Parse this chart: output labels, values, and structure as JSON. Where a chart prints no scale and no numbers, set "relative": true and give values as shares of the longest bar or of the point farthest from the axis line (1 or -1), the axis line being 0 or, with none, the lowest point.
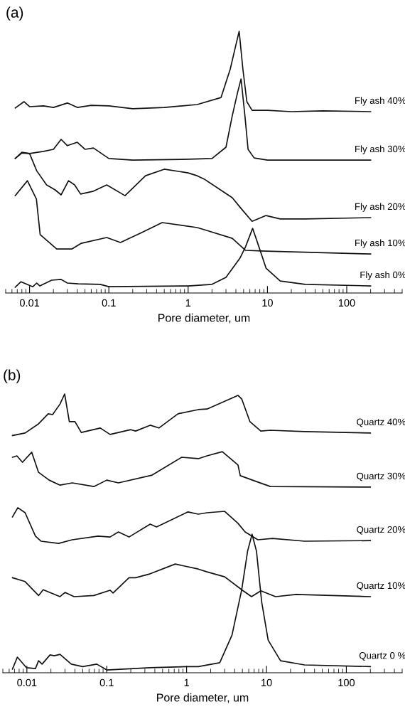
{
  "chart_data": [
    {
      "type": "line",
      "title": "(a)",
      "xlabel": "Pore diameter, um",
      "log": "x",
      "relative": true,
      "xlim": [
        0.005,
        500
      ],
      "xticks": [
        0.01,
        0.1,
        1,
        10,
        100
      ],
      "series": [
        {
          "name": "Fly ash 40%",
          "color": "#111111",
          "x": [
            0.0066,
            0.0085,
            0.01,
            0.015,
            0.02,
            0.03,
            0.04,
            0.06,
            0.1,
            0.2,
            0.5,
            1.3,
            2.6,
            3.4,
            4.0,
            4.4,
            4.9,
            5.5,
            6.4,
            10,
            20,
            50,
            200
          ],
          "values": [
            0.707,
            0.731,
            0.712,
            0.715,
            0.709,
            0.726,
            0.709,
            0.717,
            0.715,
            0.704,
            0.709,
            0.72,
            0.747,
            0.856,
            0.948,
            1.0,
            0.856,
            0.731,
            0.698,
            0.698,
            0.693,
            0.696,
            0.693
          ]
        },
        {
          "name": "Fly ash 30%",
          "color": "#111111",
          "x": [
            0.0066,
            0.008,
            0.01,
            0.015,
            0.02,
            0.025,
            0.03,
            0.04,
            0.05,
            0.064,
            0.1,
            0.2,
            1,
            2.0,
            3.0,
            3.6,
            4.2,
            4.65,
            5.2,
            5.7,
            6.8,
            10,
            30,
            200
          ],
          "values": [
            0.514,
            0.535,
            0.533,
            0.541,
            0.549,
            0.587,
            0.563,
            0.576,
            0.549,
            0.554,
            0.514,
            0.508,
            0.511,
            0.514,
            0.557,
            0.677,
            0.766,
            0.818,
            0.677,
            0.549,
            0.516,
            0.508,
            0.508,
            0.508
          ]
        },
        {
          "name": "Fly ash 20%",
          "color": "#111111",
          "x": [
            0.0066,
            0.008,
            0.01,
            0.0123,
            0.0164,
            0.021,
            0.025,
            0.031,
            0.037,
            0.044,
            0.064,
            0.094,
            0.16,
            0.29,
            0.5,
            1,
            1.3,
            1.6,
            3.6,
            4.65,
            6.4,
            9.6,
            14.5,
            30,
            200
          ],
          "values": [
            0.514,
            0.538,
            0.533,
            0.467,
            0.413,
            0.394,
            0.375,
            0.429,
            0.413,
            0.378,
            0.389,
            0.413,
            0.372,
            0.448,
            0.473,
            0.459,
            0.448,
            0.435,
            0.364,
            0.323,
            0.274,
            0.296,
            0.283,
            0.283,
            0.288
          ]
        },
        {
          "name": "Fly ash 10%",
          "color": "#111111",
          "x": [
            0.0066,
            0.0094,
            0.0122,
            0.0136,
            0.022,
            0.034,
            0.045,
            0.094,
            0.14,
            0.26,
            0.47,
            1.3,
            1.6,
            3.6,
            5.3,
            9.6,
            200
          ],
          "values": [
            0.372,
            0.429,
            0.359,
            0.223,
            0.168,
            0.168,
            0.19,
            0.212,
            0.193,
            0.231,
            0.269,
            0.25,
            0.242,
            0.209,
            0.163,
            0.16,
            0.149
          ]
        },
        {
          "name": "Fly ash 0%",
          "color": "#111111",
          "x": [
            0.0066,
            0.0078,
            0.011,
            0.0123,
            0.0135,
            0.019,
            0.025,
            0.03,
            0.041,
            0.078,
            0.1,
            1,
            2.0,
            3.0,
            4.5,
            5.3,
            6.5,
            7.8,
            9.6,
            14.5,
            30,
            200
          ],
          "values": [
            0.022,
            0.043,
            0.024,
            0.038,
            0.027,
            0.049,
            0.052,
            0.038,
            0.035,
            0.033,
            0.024,
            0.027,
            0.033,
            0.06,
            0.133,
            0.177,
            0.247,
            0.177,
            0.095,
            0.046,
            0.033,
            0.027
          ]
        }
      ]
    },
    {
      "type": "line",
      "title": "(b)",
      "xlabel": "Pore diameter, um",
      "log": "x",
      "relative": true,
      "xlim": [
        0.005,
        500
      ],
      "xticks": [
        0.01,
        0.1,
        1,
        10,
        100
      ],
      "series": [
        {
          "name": "Quartz 40%",
          "color": "#111111",
          "x": [
            0.0066,
            0.0095,
            0.014,
            0.0185,
            0.021,
            0.026,
            0.0297,
            0.034,
            0.04,
            0.048,
            0.083,
            0.11,
            0.2,
            0.23,
            0.35,
            0.45,
            0.78,
            1.4,
            1.8,
            4.4,
            4.9,
            6.2,
            8.5,
            11.2,
            30,
            200
          ],
          "values": [
            0.851,
            0.86,
            0.893,
            0.929,
            0.926,
            0.964,
            1.0,
            0.901,
            0.901,
            0.862,
            0.878,
            0.855,
            0.872,
            0.867,
            0.888,
            0.878,
            0.929,
            0.944,
            0.946,
            0.995,
            0.982,
            0.901,
            0.867,
            0.87,
            0.865,
            0.86
          ]
        },
        {
          "name": "Quartz 30%",
          "color": "#111111",
          "x": [
            0.0066,
            0.0075,
            0.0088,
            0.0115,
            0.014,
            0.019,
            0.026,
            0.037,
            0.069,
            0.1,
            0.14,
            0.37,
            0.87,
            1.4,
            1.8,
            2.8,
            4.4,
            4.7,
            7.8,
            11.2,
            200
          ],
          "values": [
            0.773,
            0.778,
            0.755,
            0.791,
            0.719,
            0.691,
            0.673,
            0.681,
            0.668,
            0.691,
            0.681,
            0.709,
            0.773,
            0.768,
            0.778,
            0.793,
            0.745,
            0.707,
            0.684,
            0.668,
            0.666
          ]
        },
        {
          "name": "Quartz 20%",
          "color": "#111111",
          "x": [
            0.0066,
            0.0077,
            0.0095,
            0.0128,
            0.015,
            0.025,
            0.037,
            0.078,
            0.11,
            0.14,
            0.19,
            0.35,
            0.42,
            1.04,
            1.4,
            1.8,
            3.0,
            4.4,
            5.4,
            7.8,
            11.9,
            30,
            200
          ],
          "values": [
            0.559,
            0.592,
            0.574,
            0.49,
            0.472,
            0.464,
            0.477,
            0.49,
            0.487,
            0.505,
            0.487,
            0.533,
            0.523,
            0.577,
            0.569,
            0.574,
            0.579,
            0.536,
            0.505,
            0.477,
            0.482,
            0.472,
            0.474
          ]
        },
        {
          "name": "Quartz 10%",
          "color": "#111111",
          "x": [
            0.0066,
            0.0095,
            0.014,
            0.016,
            0.026,
            0.03,
            0.039,
            0.069,
            0.11,
            0.12,
            0.19,
            0.23,
            0.35,
            0.72,
            1.4,
            1.8,
            3.0,
            5.0,
            6.5,
            8.5,
            13,
            23.5,
            200
          ],
          "values": [
            0.341,
            0.327,
            0.277,
            0.298,
            0.273,
            0.288,
            0.273,
            0.277,
            0.296,
            0.286,
            0.341,
            0.341,
            0.355,
            0.39,
            0.372,
            0.362,
            0.344,
            0.296,
            0.273,
            0.294,
            0.273,
            0.281,
            0.273
          ]
        },
        {
          "name": "Quartz 0 %",
          "color": "#111111",
          "x": [
            0.0066,
            0.0076,
            0.0099,
            0.0128,
            0.014,
            0.0155,
            0.0195,
            0.022,
            0.026,
            0.036,
            0.05,
            0.075,
            0.1,
            0.35,
            1,
            1.4,
            2.6,
            3.7,
            4.9,
            5.8,
            6.6,
            7.5,
            8.7,
            10.5,
            15,
            30,
            200
          ],
          "values": [
            0.013,
            0.056,
            0.018,
            0.015,
            0.043,
            0.031,
            0.064,
            0.061,
            0.066,
            0.031,
            0.022,
            0.031,
            0.01,
            0.018,
            0.022,
            0.022,
            0.036,
            0.135,
            0.298,
            0.436,
            0.497,
            0.436,
            0.255,
            0.117,
            0.043,
            0.028,
            0.022
          ]
        }
      ]
    }
  ]
}
